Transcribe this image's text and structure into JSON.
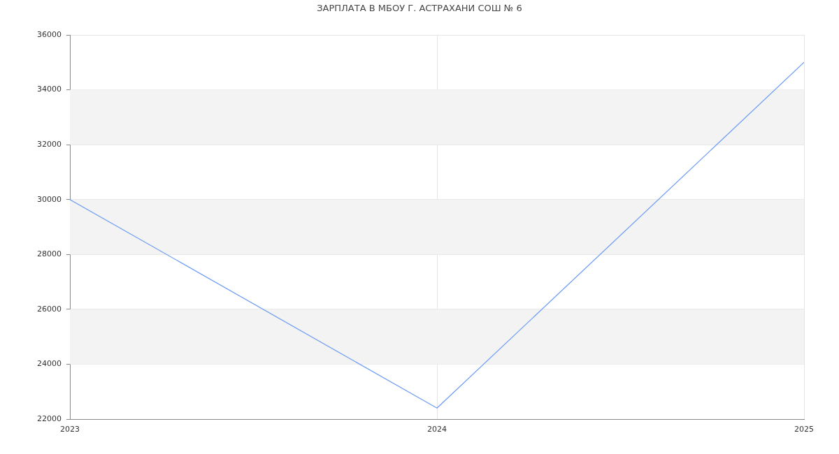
{
  "chart_data": {
    "type": "line",
    "title": "ЗАРПЛАТА В МБОУ Г. АСТРАХАНИ СОШ № 6",
    "x": [
      2023,
      2024,
      2025
    ],
    "xlim": [
      2023,
      2025
    ],
    "xticks": [
      2023,
      2024,
      2025
    ],
    "ylim": [
      22000,
      36000
    ],
    "yticks": [
      22000,
      24000,
      26000,
      28000,
      30000,
      32000,
      34000,
      36000
    ],
    "series": [
      {
        "color": "#6d9cf5",
        "values": [
          30000,
          22400,
          35000
        ]
      }
    ],
    "grid": true
  }
}
